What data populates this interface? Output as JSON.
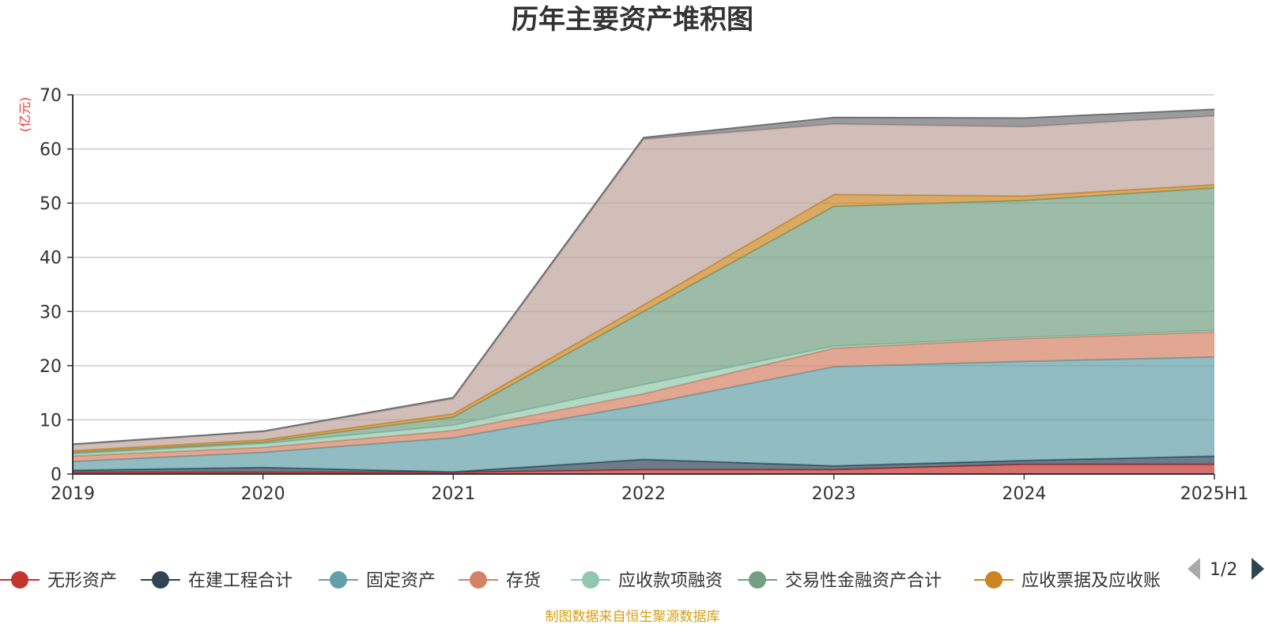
{
  "chart_data": {
    "type": "area",
    "stacked": true,
    "title": "历年主要资产堆积图",
    "y_unit": "(亿元)",
    "categories": [
      "2019",
      "2020",
      "2021",
      "2022",
      "2023",
      "2024",
      "2025H1"
    ],
    "y_ticks": [
      "0",
      "10",
      "20",
      "30",
      "40",
      "50",
      "60",
      "70"
    ],
    "ylim": [
      0,
      70
    ],
    "grid": true,
    "series": [
      {
        "name": "无形资产",
        "color": "#c23531",
        "values": [
          0.3,
          0.3,
          0.3,
          0.8,
          0.8,
          1.8,
          1.8
        ]
      },
      {
        "name": "在建工程合计",
        "color": "#2f4554",
        "values": [
          0.4,
          0.9,
          0.1,
          1.9,
          0.7,
          0.7,
          1.5
        ]
      },
      {
        "name": "固定资产",
        "color": "#61a0a8",
        "values": [
          1.6,
          2.8,
          6.3,
          10.1,
          18.3,
          18.3,
          18.3
        ]
      },
      {
        "name": "存货",
        "color": "#d48265",
        "values": [
          1.0,
          0.9,
          1.3,
          2.0,
          3.4,
          4.2,
          4.6
        ]
      },
      {
        "name": "应收款项融资",
        "color": "#91c7ae",
        "values": [
          0.4,
          0.7,
          1.0,
          1.7,
          0.4,
          0.2,
          0.3
        ]
      },
      {
        "name": "交易性金融资产合计",
        "color": "#749f83",
        "values": [
          0.3,
          0.3,
          1.5,
          13.5,
          25.8,
          25.3,
          26.3
        ]
      },
      {
        "name": "应收票据及应收账",
        "color": "#ca8622",
        "values": [
          0.3,
          0.4,
          0.6,
          1.2,
          2.2,
          0.8,
          0.6
        ]
      },
      {
        "name": "",
        "color": "#bda29a",
        "values": [
          1.1,
          1.5,
          2.8,
          30.6,
          13.0,
          12.8,
          12.7
        ]
      },
      {
        "name": "",
        "color": "#6e7074",
        "values": [
          0.1,
          0.1,
          0.2,
          0.3,
          1.2,
          1.6,
          1.2
        ]
      }
    ],
    "legend_position": "bottom",
    "legend_visible_count": 7
  },
  "legend": {
    "pager": "1/2"
  },
  "source_note": "制图数据来自恒生聚源数据库"
}
